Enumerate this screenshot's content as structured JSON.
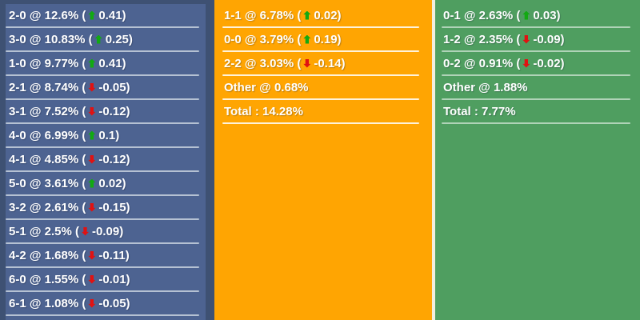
{
  "colors": {
    "page_background": "#3e5173",
    "home_panel_bg": "#4d6391",
    "draw_panel_bg": "#ffa502",
    "away_panel_bg": "#4f9e60",
    "divider_cream": "#f2eedd",
    "text": "#ffffff",
    "up_arrow": "#12a912",
    "down_arrow": "#e01212"
  },
  "panels": [
    {
      "id": "home-scores",
      "rows": [
        {
          "label": "2-0",
          "pct": "12.6%",
          "dir": "up",
          "change": "0.41"
        },
        {
          "label": "3-0",
          "pct": "10.83%",
          "dir": "up",
          "change": "0.25"
        },
        {
          "label": "1-0",
          "pct": "9.77%",
          "dir": "up",
          "change": "0.41"
        },
        {
          "label": "2-1",
          "pct": "8.74%",
          "dir": "down",
          "change": "-0.05"
        },
        {
          "label": "3-1",
          "pct": "7.52%",
          "dir": "down",
          "change": "-0.12"
        },
        {
          "label": "4-0",
          "pct": "6.99%",
          "dir": "up",
          "change": "0.1"
        },
        {
          "label": "4-1",
          "pct": "4.85%",
          "dir": "down",
          "change": "-0.12"
        },
        {
          "label": "5-0",
          "pct": "3.61%",
          "dir": "up",
          "change": "0.02"
        },
        {
          "label": "3-2",
          "pct": "2.61%",
          "dir": "down",
          "change": "-0.15"
        },
        {
          "label": "5-1",
          "pct": "2.5%",
          "dir": "down",
          "change": "-0.09"
        },
        {
          "label": "4-2",
          "pct": "1.68%",
          "dir": "down",
          "change": "-0.11"
        },
        {
          "label": "6-0",
          "pct": "1.55%",
          "dir": "down",
          "change": "-0.01"
        },
        {
          "label": "6-1",
          "pct": "1.08%",
          "dir": "down",
          "change": "-0.05"
        }
      ]
    },
    {
      "id": "draw-scores",
      "rows": [
        {
          "label": "1-1",
          "pct": "6.78%",
          "dir": "up",
          "change": "0.02"
        },
        {
          "label": "0-0",
          "pct": "3.79%",
          "dir": "up",
          "change": "0.19"
        },
        {
          "label": "2-2",
          "pct": "3.03%",
          "dir": "down",
          "change": "-0.14"
        },
        {
          "label": "Other",
          "pct": "0.68%"
        },
        {
          "label": "Total",
          "pct": "14.28%",
          "is_total": true
        }
      ]
    },
    {
      "id": "away-scores",
      "rows": [
        {
          "label": "0-1",
          "pct": "2.63%",
          "dir": "up",
          "change": "0.03"
        },
        {
          "label": "1-2",
          "pct": "2.35%",
          "dir": "down",
          "change": "-0.09"
        },
        {
          "label": "0-2",
          "pct": "0.91%",
          "dir": "down",
          "change": "-0.02"
        },
        {
          "label": "Other",
          "pct": "1.88%"
        },
        {
          "label": "Total",
          "pct": "7.77%",
          "is_total": true
        }
      ]
    }
  ]
}
